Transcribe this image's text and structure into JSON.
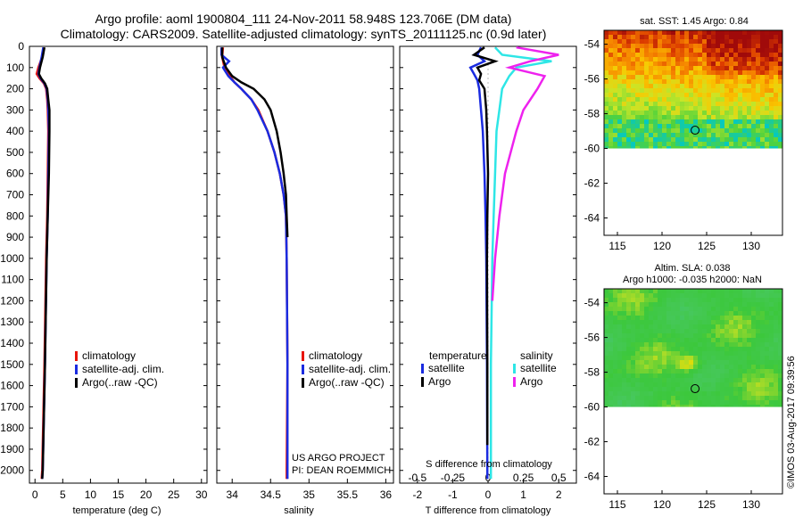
{
  "header": {
    "line1": "Argo profile: aoml 1900804_111 24-Nov-2011 58.948S 123.706E (DM data)",
    "line2": "Climatology: CARS2009. Satellite-adjusted climatology: synTS_20111125.nc (0.9d later)"
  },
  "colors": {
    "climatology": "#e8150a",
    "satellite": "#1a2be0",
    "argo": "#000000",
    "sal_satellite": "#2ee6e6",
    "sal_argo": "#ee22ee"
  },
  "depth_ticks": [
    "0",
    "100",
    "200",
    "300",
    "400",
    "500",
    "600",
    "700",
    "800",
    "900",
    "1000",
    "1100",
    "1200",
    "1300",
    "1400",
    "1500",
    "1600",
    "1700",
    "1800",
    "1900",
    "2000"
  ],
  "chart_data": [
    {
      "type": "line",
      "xlabel": "temperature (deg C)",
      "xlim": [
        -1,
        31
      ],
      "ylim": [
        2060,
        0
      ],
      "xticks": [
        "0",
        "5",
        "10",
        "15",
        "20",
        "25",
        "30"
      ],
      "legend": [
        "climatology",
        "satellite-adj. clim.",
        "Argo(..raw -QC)"
      ],
      "legend_placement": "middle",
      "series": [
        {
          "name": "climatology",
          "color": "#e8150a",
          "depth": [
            5,
            50,
            100,
            130,
            150,
            175,
            200,
            250,
            300,
            400,
            600,
            800,
            1000,
            1500,
            2000,
            2040
          ],
          "values": [
            1.6,
            1.3,
            0.6,
            0.3,
            0.8,
            1.6,
            2.0,
            2.2,
            2.3,
            2.4,
            2.3,
            2.2,
            2.0,
            1.7,
            1.3,
            1.2
          ]
        },
        {
          "name": "satellite-adj. clim.",
          "color": "#1a2be0",
          "depth": [
            5,
            50,
            100,
            130,
            150,
            175,
            200,
            250,
            300,
            400,
            600,
            800,
            1000,
            1500,
            2000,
            2040
          ],
          "values": [
            1.5,
            1.2,
            0.8,
            0.6,
            1.0,
            1.7,
            2.1,
            2.3,
            2.4,
            2.5,
            2.4,
            2.3,
            2.1,
            1.8,
            1.4,
            1.3
          ]
        },
        {
          "name": "Argo(..raw -QC)",
          "color": "#000000",
          "depth": [
            5,
            50,
            100,
            130,
            150,
            175,
            200,
            250,
            300,
            400,
            600,
            800,
            1000,
            1500,
            2000,
            2040
          ],
          "values": [
            1.7,
            1.4,
            0.9,
            0.7,
            1.1,
            1.8,
            2.2,
            2.4,
            2.6,
            2.6,
            2.5,
            2.3,
            2.1,
            1.8,
            1.4,
            1.3
          ]
        }
      ]
    },
    {
      "type": "line",
      "xlabel": "salinity",
      "xlim": [
        33.8,
        36.1
      ],
      "ylim": [
        2060,
        0
      ],
      "xticks": [
        "34",
        "34.5",
        "35",
        "35.5",
        "36"
      ],
      "legend": [
        "climatology",
        "satellite-adj. clim.",
        "Argo(..raw -QC)"
      ],
      "legend_placement": "middle",
      "annotation": [
        "US ARGO PROJECT",
        "PI: DEAN ROEMMICH"
      ],
      "series": [
        {
          "name": "climatology",
          "color": "#e8150a",
          "depth": [
            5,
            50,
            100,
            140,
            170,
            200,
            250,
            300,
            400,
            500,
            600,
            700,
            800,
            1000,
            1500,
            2000,
            2040
          ],
          "values": [
            33.88,
            33.87,
            33.9,
            33.97,
            34.03,
            34.12,
            34.25,
            34.34,
            34.46,
            34.55,
            34.62,
            34.67,
            34.7,
            34.71,
            34.72,
            34.71,
            34.71
          ]
        },
        {
          "name": "satellite-adj. clim.",
          "color": "#1a2be0",
          "depth": [
            5,
            40,
            70,
            100,
            140,
            170,
            200,
            250,
            300,
            400,
            500,
            600,
            700,
            800,
            1000,
            1500,
            2000,
            2040
          ],
          "values": [
            33.86,
            33.86,
            33.96,
            33.88,
            33.95,
            34.03,
            34.12,
            34.25,
            34.33,
            34.46,
            34.55,
            34.62,
            34.67,
            34.7,
            34.71,
            34.72,
            34.72,
            34.72
          ]
        },
        {
          "name": "Argo(..raw -QC)",
          "color": "#000000",
          "depth": [
            5,
            50,
            100,
            140,
            170,
            200,
            250,
            300,
            400,
            500,
            600,
            700,
            800,
            900
          ],
          "values": [
            33.87,
            33.87,
            33.92,
            34.0,
            34.12,
            34.28,
            34.42,
            34.5,
            34.58,
            34.63,
            34.67,
            34.7,
            34.71,
            34.72
          ]
        }
      ]
    },
    {
      "type": "line",
      "xlabel": "T difference from climatology",
      "x2label": "S difference from climatology",
      "xlim": [
        -2.5,
        2.5
      ],
      "ylim": [
        2060,
        0
      ],
      "xticks": [
        "-2",
        "-1",
        "0",
        "1",
        "2"
      ],
      "x2ticks": [
        "-0.5",
        "-0.25",
        "0",
        "0.25",
        "0.5"
      ],
      "legend_temperature_title": "temperature",
      "legend_salinity_title": "salinity",
      "legend_temperature": [
        "satellite",
        "Argo"
      ],
      "legend_salinity": [
        "satellite",
        "Argo"
      ],
      "series": [
        {
          "name": "satellite",
          "group": "temperature",
          "color": "#1a2be0",
          "depth": [
            5,
            40,
            70,
            100,
            130,
            160,
            200,
            300,
            400,
            600,
            800,
            1000,
            1500,
            2000,
            2040
          ],
          "values": [
            -0.2,
            -0.3,
            -0.1,
            -0.5,
            -0.4,
            -0.3,
            -0.25,
            -0.2,
            -0.15,
            -0.1,
            -0.07,
            -0.05,
            -0.03,
            -0.02,
            -0.02
          ]
        },
        {
          "name": "Argo",
          "group": "temperature",
          "color": "#000000",
          "depth": [
            5,
            40,
            70,
            100,
            130,
            160,
            200,
            300,
            400,
            600,
            800,
            1000,
            1500,
            1880
          ],
          "values": [
            -0.1,
            -0.4,
            0.2,
            -0.3,
            -0.2,
            -0.25,
            -0.1,
            -0.05,
            -0.03,
            0.0,
            -0.02,
            -0.03,
            -0.02,
            -0.02
          ]
        },
        {
          "name": "satellite",
          "group": "salinity",
          "color": "#2ee6e6",
          "depth": [
            5,
            40,
            70,
            100,
            140,
            200,
            300,
            400,
            600,
            800,
            1000,
            1500,
            2000,
            2040
          ],
          "values": [
            0.05,
            0.1,
            0.45,
            0.2,
            0.15,
            0.1,
            0.08,
            0.06,
            0.05,
            0.04,
            0.03,
            0.02,
            0.02,
            0.02
          ]
        },
        {
          "name": "Argo",
          "group": "salinity",
          "color": "#ee22ee",
          "depth": [
            5,
            40,
            70,
            100,
            140,
            200,
            300,
            400,
            600,
            800,
            1000,
            1200
          ],
          "values": [
            0.2,
            0.5,
            0.3,
            0.15,
            0.4,
            0.35,
            0.25,
            0.2,
            0.12,
            0.08,
            0.05,
            0.03
          ]
        }
      ]
    },
    {
      "type": "heatmap",
      "title": "sat. SST: 1.45 Argo: 0.84",
      "xlim": [
        113.5,
        133.5
      ],
      "ylim": [
        -65,
        -53.2
      ],
      "xticks": [
        "115",
        "120",
        "125",
        "130"
      ],
      "yticks": [
        "-54",
        "-56",
        "-58",
        "-60",
        "-62",
        "-64"
      ],
      "data_extent_lat": [
        -60,
        -53.2
      ],
      "marker": [
        123.706,
        -58.948
      ]
    },
    {
      "type": "heatmap",
      "title": "Altim. SLA: 0.038",
      "subtitle": "Argo h1000: -0.035 h2000: NaN",
      "xlim": [
        113.5,
        133.5
      ],
      "ylim": [
        -65,
        -53.2
      ],
      "xticks": [
        "115",
        "120",
        "125",
        "130"
      ],
      "yticks": [
        "-54",
        "-56",
        "-58",
        "-60",
        "-62",
        "-64"
      ],
      "data_extent_lat": [
        -60,
        -53.2
      ],
      "marker": [
        123.706,
        -58.948
      ]
    }
  ],
  "footer": {
    "credit": "©IMOS 03-Aug-2017 09:39:56"
  }
}
